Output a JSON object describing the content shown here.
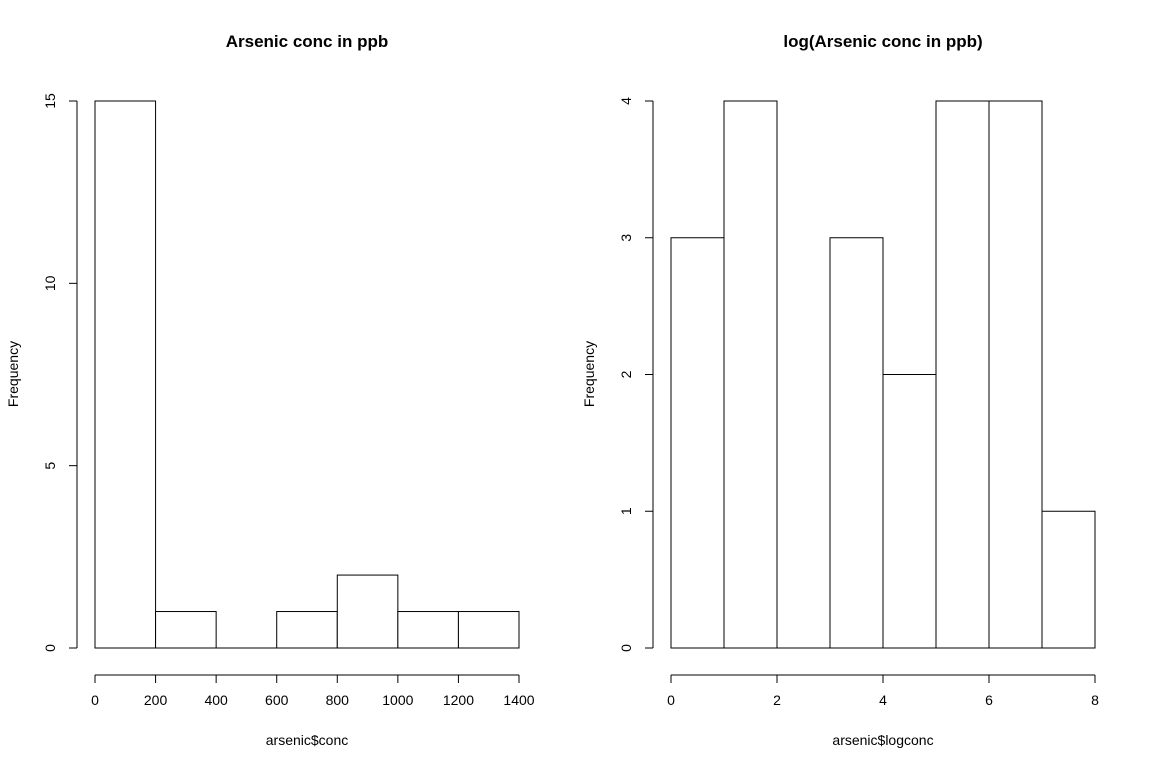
{
  "chart_data": [
    {
      "type": "bar",
      "title": "Arsenic conc in ppb",
      "xlabel": "arsenic$conc",
      "ylabel": "Frequency",
      "bins": [
        [
          0,
          200
        ],
        [
          200,
          400
        ],
        [
          400,
          600
        ],
        [
          600,
          800
        ],
        [
          800,
          1000
        ],
        [
          1000,
          1200
        ],
        [
          1200,
          1400
        ]
      ],
      "values": [
        15,
        1,
        0,
        1,
        2,
        1,
        1
      ],
      "xlim": [
        0,
        1400
      ],
      "ylim": [
        0,
        15
      ],
      "xticks": [
        0,
        200,
        400,
        600,
        800,
        1000,
        1200,
        1400
      ],
      "yticks": [
        0,
        5,
        10,
        15
      ],
      "grid": false
    },
    {
      "type": "bar",
      "title": "log(Arsenic conc in ppb)",
      "xlabel": "arsenic$logconc",
      "ylabel": "Frequency",
      "bins": [
        [
          0,
          1
        ],
        [
          1,
          2
        ],
        [
          2,
          3
        ],
        [
          3,
          4
        ],
        [
          4,
          5
        ],
        [
          5,
          6
        ],
        [
          6,
          7
        ],
        [
          7,
          8
        ]
      ],
      "values": [
        3,
        4,
        0,
        3,
        2,
        4,
        4,
        1
      ],
      "xlim": [
        0,
        8
      ],
      "ylim": [
        0,
        4
      ],
      "xticks": [
        0,
        2,
        4,
        6,
        8
      ],
      "yticks": [
        0,
        1,
        2,
        3,
        4
      ],
      "grid": false
    }
  ]
}
